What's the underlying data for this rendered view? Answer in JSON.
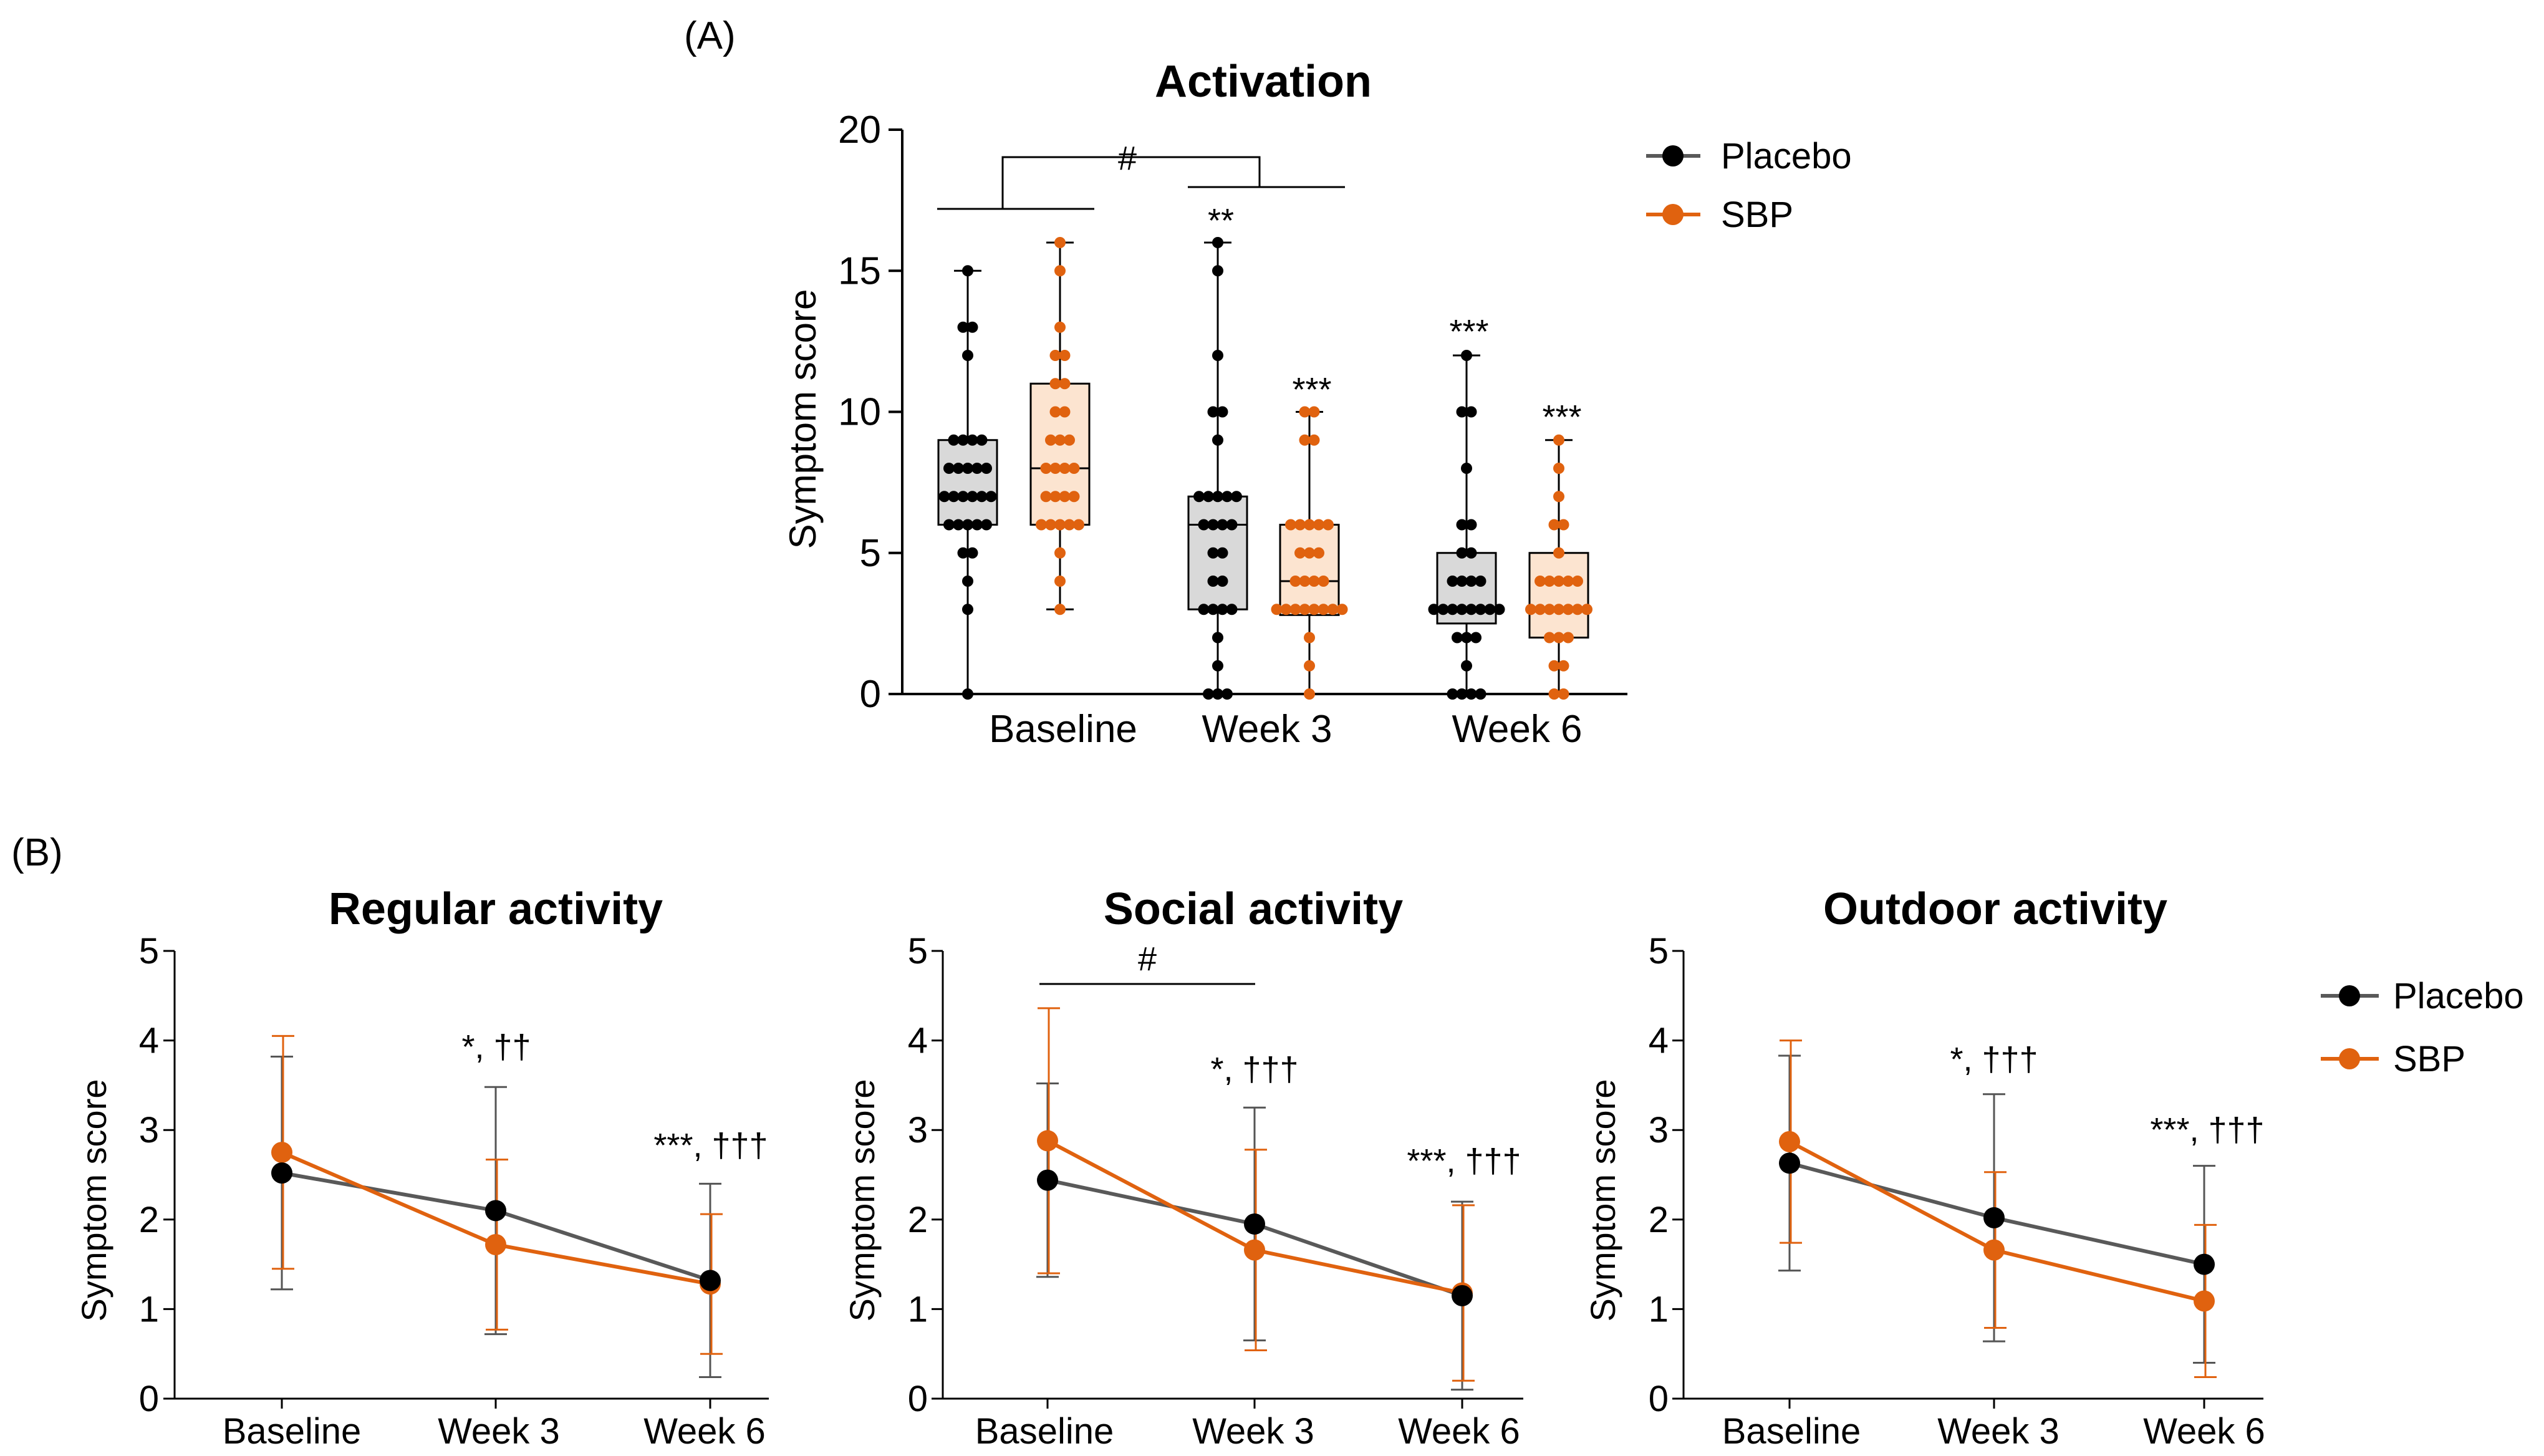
{
  "panels": {
    "a": "(A)",
    "b": "(B)"
  },
  "colors": {
    "placebo": "#000000",
    "sbp": "#E0620F",
    "placebo_line": "#595959",
    "placebo_box": "#D9D9D9",
    "sbp_box": "#FCE4D0"
  },
  "legend": {
    "placebo": "Placebo",
    "sbp": "SBP"
  },
  "chart_data": [
    {
      "type": "box",
      "title": "Activation",
      "ylabel": "Symptom score",
      "ylim": [
        0,
        20
      ],
      "yticks": [
        "0",
        "5",
        "10",
        "15",
        "20"
      ],
      "categories": [
        "Baseline",
        "Week 3",
        "Week 6"
      ],
      "series": [
        {
          "name": "Placebo",
          "boxes": [
            {
              "min": 0,
              "q1": 6,
              "median": 7,
              "q3": 9,
              "max": 15,
              "points": [
                0,
                3,
                4,
                5,
                5,
                6,
                6,
                6,
                6,
                6,
                7,
                7,
                7,
                7,
                7,
                7,
                8,
                8,
                8,
                8,
                8,
                9,
                9,
                9,
                9,
                12,
                13,
                13,
                15
              ]
            },
            {
              "min": 0,
              "q1": 3,
              "median": 6,
              "q3": 7,
              "max": 16,
              "points": [
                0,
                0,
                0,
                1,
                2,
                3,
                3,
                3,
                3,
                4,
                4,
                5,
                5,
                6,
                6,
                6,
                6,
                7,
                7,
                7,
                7,
                7,
                9,
                10,
                10,
                12,
                15,
                16
              ]
            },
            {
              "min": 0,
              "q1": 2.5,
              "median": 3,
              "q3": 5,
              "max": 12,
              "points": [
                0,
                0,
                0,
                0,
                1,
                2,
                2,
                2,
                3,
                3,
                3,
                3,
                3,
                3,
                3,
                3,
                4,
                4,
                4,
                4,
                5,
                5,
                6,
                6,
                8,
                10,
                10,
                12
              ]
            }
          ]
        },
        {
          "name": "SBP",
          "boxes": [
            {
              "min": 3,
              "q1": 6,
              "median": 8,
              "q3": 11,
              "max": 16,
              "points": [
                3,
                4,
                5,
                6,
                6,
                6,
                6,
                6,
                7,
                7,
                7,
                7,
                8,
                8,
                8,
                8,
                9,
                9,
                9,
                10,
                10,
                11,
                11,
                12,
                12,
                13,
                15,
                16
              ]
            },
            {
              "min": 0,
              "q1": 2.8,
              "median": 4,
              "q3": 6,
              "max": 10,
              "points": [
                0,
                1,
                2,
                3,
                3,
                3,
                3,
                3,
                3,
                3,
                3,
                4,
                4,
                4,
                4,
                5,
                5,
                5,
                6,
                6,
                6,
                6,
                6,
                9,
                9,
                10,
                10
              ]
            },
            {
              "min": 0,
              "q1": 2,
              "median": 3,
              "q3": 5,
              "max": 9,
              "points": [
                0,
                0,
                1,
                1,
                2,
                2,
                2,
                3,
                3,
                3,
                3,
                3,
                3,
                3,
                4,
                4,
                4,
                4,
                4,
                5,
                6,
                6,
                7,
                8,
                9
              ]
            }
          ]
        }
      ],
      "annotations": {
        "bracket": "#",
        "sig": [
          {
            "series": "Placebo",
            "category": "Week 3",
            "label": "**"
          },
          {
            "series": "SBP",
            "category": "Week 3",
            "label": "***"
          },
          {
            "series": "Placebo",
            "category": "Week 6",
            "label": "***"
          },
          {
            "series": "SBP",
            "category": "Week 6",
            "label": "***"
          }
        ]
      }
    },
    {
      "type": "line",
      "title": "Regular activity",
      "ylabel": "Symptom score",
      "ylim": [
        0,
        5
      ],
      "yticks": [
        "0",
        "1",
        "2",
        "3",
        "4",
        "5"
      ],
      "categories": [
        "Baseline",
        "Week 3",
        "Week 6"
      ],
      "series": [
        {
          "name": "Placebo",
          "values": [
            2.52,
            2.1,
            1.32
          ],
          "sd": [
            1.3,
            1.38,
            1.08
          ]
        },
        {
          "name": "SBP",
          "values": [
            2.75,
            1.72,
            1.28
          ],
          "sd": [
            1.3,
            0.95,
            0.78
          ]
        }
      ],
      "annotations": [
        {
          "category": "Week 3",
          "label": "*, ††"
        },
        {
          "category": "Week 6",
          "label": "***, †††"
        }
      ]
    },
    {
      "type": "line",
      "title": "Social activity",
      "ylabel": "Symptom score",
      "ylim": [
        0,
        5
      ],
      "yticks": [
        "0",
        "1",
        "2",
        "3",
        "4",
        "5"
      ],
      "categories": [
        "Baseline",
        "Week 3",
        "Week 6"
      ],
      "series": [
        {
          "name": "Placebo",
          "values": [
            2.44,
            1.95,
            1.15
          ],
          "sd": [
            1.08,
            1.3,
            1.05
          ]
        },
        {
          "name": "SBP",
          "values": [
            2.88,
            1.66,
            1.18
          ],
          "sd": [
            1.48,
            1.12,
            0.98
          ]
        }
      ],
      "annotations": [
        {
          "category": "Baseline",
          "label": "#"
        },
        {
          "category": "Week 3",
          "label": "*, †††"
        },
        {
          "category": "Week 6",
          "label": "***, †††"
        }
      ]
    },
    {
      "type": "line",
      "title": "Outdoor activity",
      "ylabel": "Symptom score",
      "ylim": [
        0,
        5
      ],
      "yticks": [
        "0",
        "1",
        "2",
        "3",
        "4",
        "5"
      ],
      "categories": [
        "Baseline",
        "Week 3",
        "Week 6"
      ],
      "series": [
        {
          "name": "Placebo",
          "values": [
            2.63,
            2.02,
            1.5
          ],
          "sd": [
            1.2,
            1.38,
            1.1
          ]
        },
        {
          "name": "SBP",
          "values": [
            2.87,
            1.66,
            1.09
          ],
          "sd": [
            1.13,
            0.87,
            0.85
          ]
        }
      ],
      "annotations": [
        {
          "category": "Week 3",
          "label": "*, †††"
        },
        {
          "category": "Week 6",
          "label": "***, †††"
        }
      ]
    }
  ]
}
